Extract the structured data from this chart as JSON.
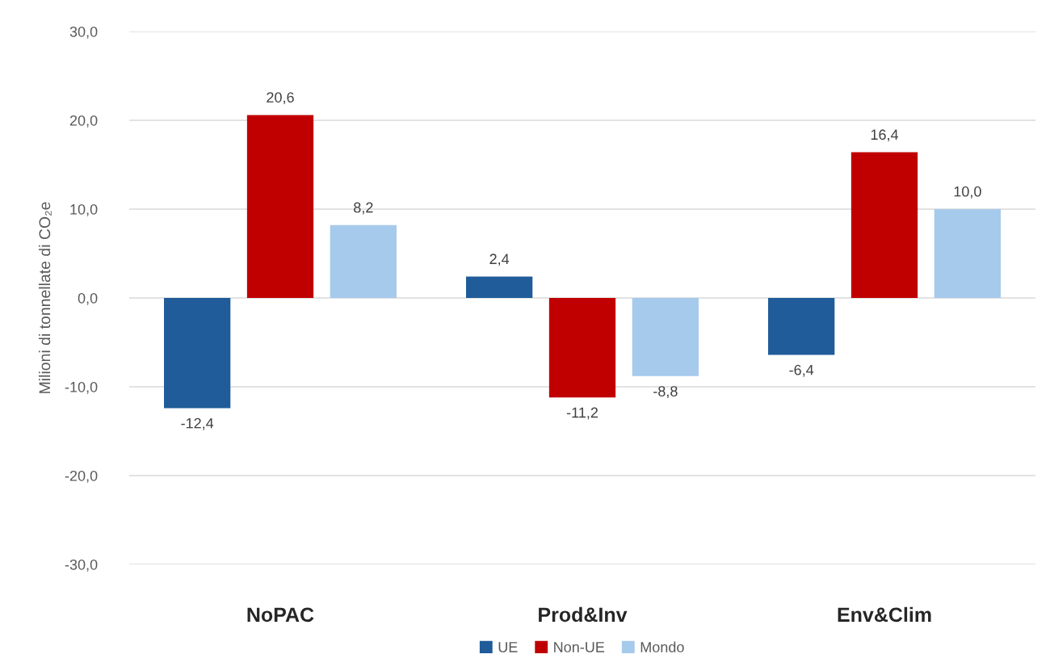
{
  "chart_data": {
    "type": "bar",
    "ylabel": "Milioni di tonnellate di CO₂e",
    "categories": [
      "NoPAC",
      "Prod&Inv",
      "Env&Clim"
    ],
    "series": [
      {
        "name": "UE",
        "color": "#1f5c99",
        "values": [
          -12.4,
          2.4,
          -6.4
        ],
        "value_labels": [
          "-12,4",
          "2,4",
          "-6,4"
        ]
      },
      {
        "name": "Non-UE",
        "color": "#c00000",
        "values": [
          20.6,
          -11.2,
          16.4
        ],
        "value_labels": [
          "20,6",
          "-11,2",
          "16,4"
        ]
      },
      {
        "name": "Mondo",
        "color": "#a6caec",
        "values": [
          8.2,
          -8.8,
          10.0
        ],
        "value_labels": [
          "8,2",
          "-8,8",
          "10,0"
        ]
      }
    ],
    "ylim": [
      -30,
      30
    ],
    "yticks": [
      {
        "value": -30,
        "label": "-30,0"
      },
      {
        "value": -20,
        "label": "-20,0"
      },
      {
        "value": -10,
        "label": "-10,0"
      },
      {
        "value": 0,
        "label": "0,0"
      },
      {
        "value": 10,
        "label": "10,0"
      },
      {
        "value": 20,
        "label": "20,0"
      },
      {
        "value": 30,
        "label": "30,0"
      }
    ],
    "grid": "y",
    "legend": "bottom"
  }
}
